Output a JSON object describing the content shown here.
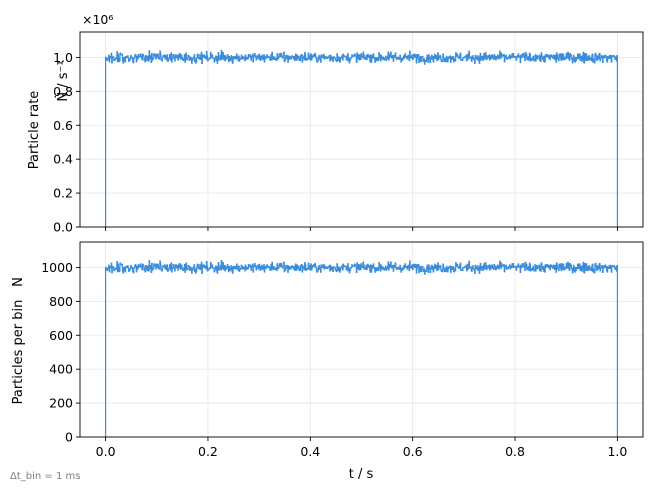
{
  "chart_data": [
    {
      "type": "line",
      "drawstyle": "steps",
      "title": "",
      "xlabel": "",
      "ylabel_name": "Particle rate",
      "ylabel_symbol": "Ṅ / s⁻¹",
      "offset_text": "×10⁶",
      "xlim": [
        -0.05,
        1.05
      ],
      "ylim": [
        0,
        1.15
      ],
      "y_units_note": "values shown in units of 1e6 particles per second",
      "x_ticks": [
        0.0,
        0.2,
        0.4,
        0.6,
        0.8,
        1.0
      ],
      "y_ticks": [
        0.0,
        0.2,
        0.4,
        0.6,
        0.8,
        1.0
      ],
      "y_tick_labels": [
        "0.0",
        "0.2",
        "0.4",
        "0.6",
        "0.8",
        "1.0"
      ],
      "grid": true,
      "series": [
        {
          "color": "#3b8ddb",
          "x": [
            0.0,
            0.1,
            0.2,
            0.3,
            0.4,
            0.5,
            0.6,
            0.7,
            0.8,
            0.9,
            1.0
          ],
          "y": [
            1.0,
            1.01,
            0.99,
            1.0,
            1.01,
            0.99,
            1.0,
            1.0,
            1.0,
            1.01,
            1.0
          ],
          "mean": 1.0,
          "noise_range": [
            0.91,
            1.1
          ],
          "n_bins": 1000
        }
      ]
    },
    {
      "type": "line",
      "drawstyle": "steps",
      "title": "",
      "xlabel": "t / s",
      "ylabel_name": "Particles per bin",
      "ylabel_symbol": "N",
      "xlim": [
        -0.05,
        1.05
      ],
      "ylim": [
        0,
        1150
      ],
      "x_ticks": [
        0.0,
        0.2,
        0.4,
        0.6,
        0.8,
        1.0
      ],
      "x_tick_labels": [
        "0.0",
        "0.2",
        "0.4",
        "0.6",
        "0.8",
        "1.0"
      ],
      "y_ticks": [
        0,
        200,
        400,
        600,
        800,
        1000
      ],
      "y_tick_labels": [
        "0",
        "200",
        "400",
        "600",
        "800",
        "1000"
      ],
      "grid": true,
      "series": [
        {
          "color": "#3b8ddb",
          "x": [
            0.0,
            0.1,
            0.2,
            0.3,
            0.4,
            0.5,
            0.6,
            0.7,
            0.8,
            0.9,
            1.0
          ],
          "y": [
            1000,
            1010,
            990,
            1000,
            1010,
            990,
            1000,
            1000,
            1000,
            1010,
            1000
          ],
          "mean": 1000,
          "noise_range": [
            910,
            1100
          ],
          "n_bins": 1000
        }
      ]
    }
  ],
  "footnote": "Δt_bin = 1 ms"
}
